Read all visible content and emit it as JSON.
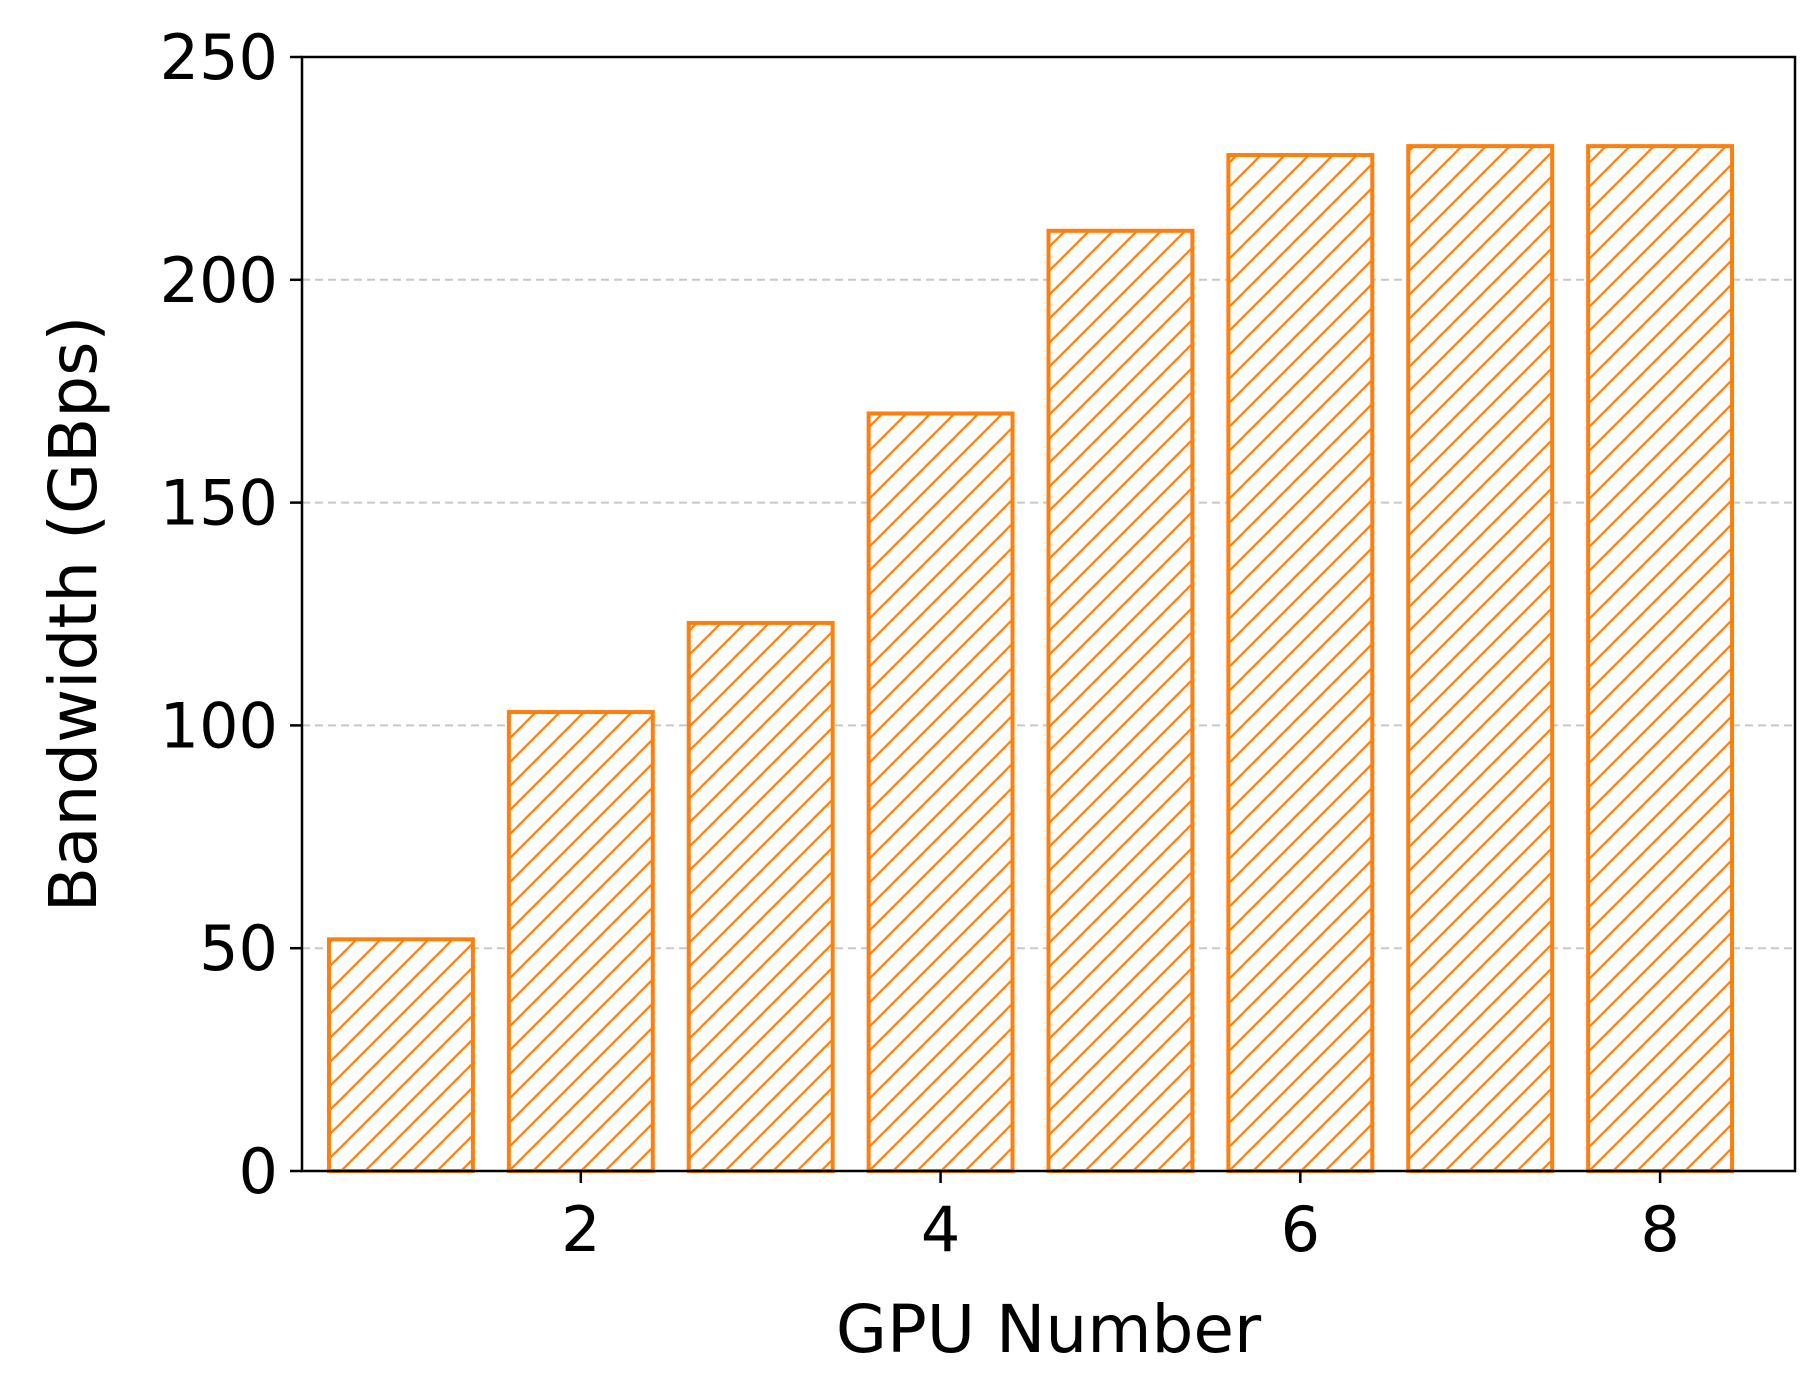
{
  "chart_data": {
    "type": "bar",
    "x": [
      1,
      2,
      3,
      4,
      5,
      6,
      7,
      8
    ],
    "values": [
      52,
      103,
      123,
      170,
      211,
      228,
      230,
      230
    ],
    "xticks": [
      2,
      4,
      6,
      8
    ],
    "yticks": [
      0,
      50,
      100,
      150,
      200,
      250
    ],
    "xlabel": "GPU Number",
    "ylabel": "Bandwidth (GBps)",
    "xlim": [
      0.45,
      8.75
    ],
    "ylim": [
      0,
      250
    ],
    "grid": "y-dashed",
    "bar_style": "hatched-outline",
    "colors": {
      "bar": "#ff7f0e",
      "grid": "#c8c8c8",
      "axis": "#000000"
    }
  }
}
